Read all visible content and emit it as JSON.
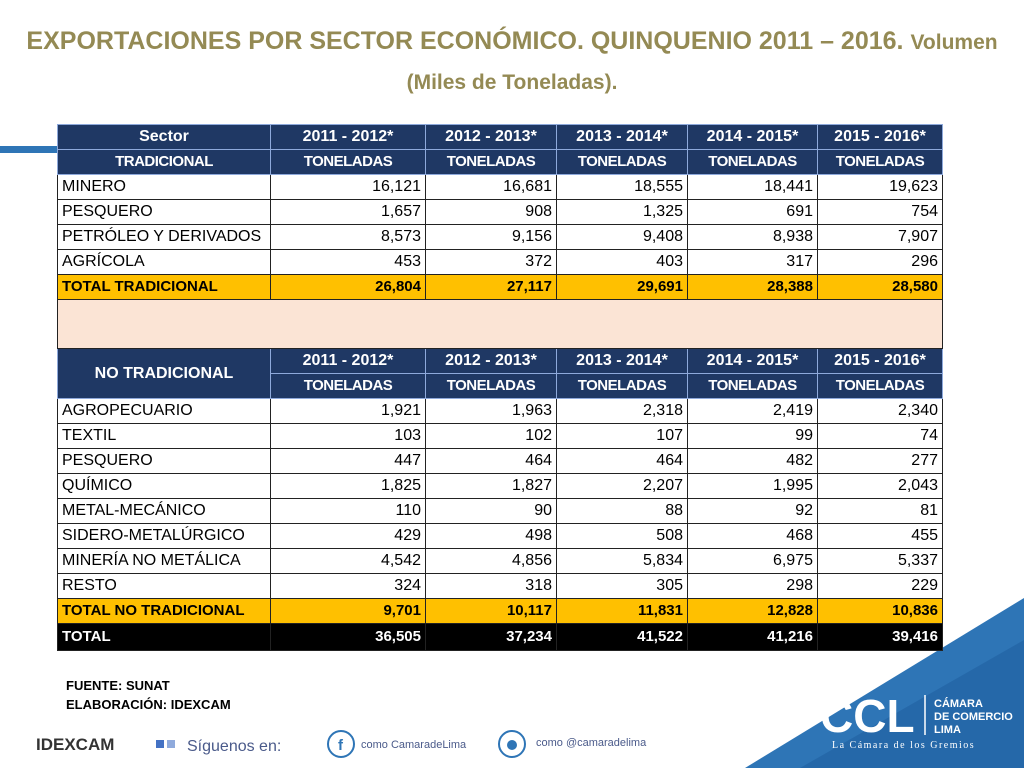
{
  "title": {
    "main": "EXPORTACIONES POR SECTOR ECONÓMICO. QUINQUENIO 2011 – 2016.",
    "sub": "Volumen (Miles de Toneladas)."
  },
  "table": {
    "traditional": {
      "header": [
        "Sector",
        "2011 - 2012*",
        "2012 - 2013*",
        "2013 - 2014*",
        "2014 - 2015*",
        "2015 - 2016*"
      ],
      "label": "TRADICIONAL",
      "units": [
        "TONELADAS",
        "TONELADAS",
        "TONELADAS",
        "TONELADAS",
        "TONELADAS"
      ],
      "rows": [
        [
          "MINERO",
          "16,121",
          "16,681",
          "18,555",
          "18,441",
          "19,623"
        ],
        [
          "PESQUERO",
          "1,657",
          "908",
          "1,325",
          "691",
          "754"
        ],
        [
          "PETRÓLEO Y DERIVADOS",
          "8,573",
          "9,156",
          "9,408",
          "8,938",
          "7,907"
        ],
        [
          "AGRÍCOLA",
          "453",
          "372",
          "403",
          "317",
          "296"
        ]
      ],
      "total": [
        "TOTAL TRADICIONAL",
        "26,804",
        "27,117",
        "29,691",
        "28,388",
        "28,580"
      ]
    },
    "non_traditional": {
      "label": "NO TRADICIONAL",
      "header": [
        "2011 - 2012*",
        "2012 - 2013*",
        "2013 - 2014*",
        "2014 - 2015*",
        "2015 - 2016*"
      ],
      "units": [
        "TONELADAS",
        "TONELADAS",
        "TONELADAS",
        "TONELADAS",
        "TONELADAS"
      ],
      "rows": [
        [
          "AGROPECUARIO",
          "1,921",
          "1,963",
          "2,318",
          "2,419",
          "2,340"
        ],
        [
          "TEXTIL",
          "103",
          "102",
          "107",
          "99",
          "74"
        ],
        [
          "PESQUERO",
          "447",
          "464",
          "464",
          "482",
          "277"
        ],
        [
          "QUÍMICO",
          "1,825",
          "1,827",
          "2,207",
          "1,995",
          "2,043"
        ],
        [
          "METAL-MECÁNICO",
          "110",
          "90",
          "88",
          "92",
          "81"
        ],
        [
          "SIDERO-METALÚRGICO",
          "429",
          "498",
          "508",
          "468",
          "455"
        ],
        [
          "MINERÍA NO METÁLICA",
          "4,542",
          "4,856",
          "5,834",
          "6,975",
          "5,337"
        ],
        [
          "RESTO",
          "324",
          "318",
          "305",
          "298",
          "229"
        ]
      ],
      "total": [
        "TOTAL NO TRADICIONAL",
        "9,701",
        "10,117",
        "11,831",
        "12,828",
        "10,836"
      ]
    },
    "grand_total": [
      "TOTAL",
      "36,505",
      "37,234",
      "41,522",
      "41,216",
      "39,416"
    ]
  },
  "footer": {
    "source": "FUENTE: SUNAT",
    "prepared": "ELABORACIÓN: IDEXCAM"
  },
  "social": {
    "follow": "Síguenos en:",
    "facebook": "como CamaradeLima",
    "twitter": "como @camaradelima"
  },
  "logos": {
    "idexcam": "IDEXCAM",
    "ccl": "CCL",
    "ccl_name": [
      "CÁMARA",
      "DE COMERCIO",
      "LIMA"
    ],
    "ccl_tagline": "La Cámara de los Gremios"
  }
}
